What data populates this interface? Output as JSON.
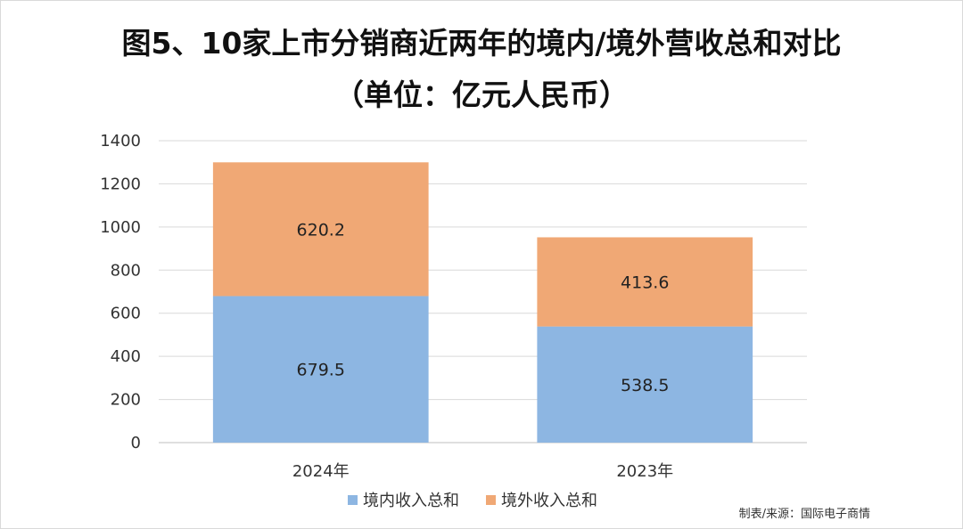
{
  "title_line1": "图5、10家上市分销商近两年的境内/境外营收总和对比",
  "title_line2": "（单位：亿元人民币）",
  "source": "制表/来源：国际电子商情",
  "colors": {
    "domestic": "#8DB6E2",
    "overseas": "#F0A875",
    "grid": "#d9d9d9",
    "axis": "#bfbfbf"
  },
  "chart_data": {
    "type": "bar",
    "stacked": true,
    "categories": [
      "2024年",
      "2023年"
    ],
    "series": [
      {
        "name": "境内收入总和",
        "values": [
          679.5,
          538.5
        ],
        "labels": [
          "679.5",
          "538.5"
        ]
      },
      {
        "name": "境外收入总和",
        "values": [
          620.2,
          413.6
        ],
        "labels": [
          "620.2",
          "413.6"
        ]
      }
    ],
    "ylim": [
      0,
      1400
    ],
    "yticks": [
      "0",
      "200",
      "400",
      "600",
      "800",
      "1000",
      "1200",
      "1400"
    ],
    "grid": true,
    "legend_position": "bottom"
  }
}
